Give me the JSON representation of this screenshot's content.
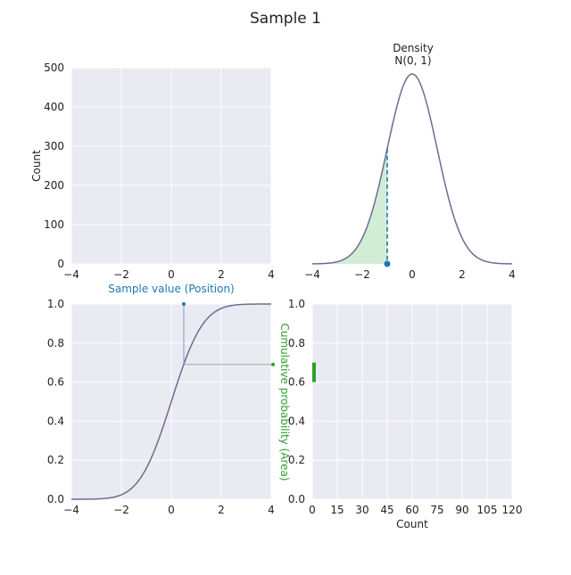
{
  "figure": {
    "title": "Sample 1"
  },
  "colors": {
    "background": "#ffffff",
    "plot_bg": "#eaeaf2",
    "grid": "#ffffff",
    "curve": "#6c6c90",
    "position_blue": "#1f77b4",
    "area_green": "#2ca02c",
    "area_fill": "#bfe6c4"
  },
  "chart_data": [
    {
      "id": "histogram-position",
      "type": "bar",
      "title": "",
      "xlabel": "Sample value (Position)",
      "ylabel": "Count",
      "xlim": [
        -4,
        4
      ],
      "ylim": [
        0,
        500
      ],
      "xticks": [
        "−4",
        "−2",
        "0",
        "2",
        "4"
      ],
      "yticks": [
        "0",
        "100",
        "200",
        "300",
        "400",
        "500"
      ],
      "values": [],
      "grid": true
    },
    {
      "id": "density",
      "type": "line",
      "title": "Density\nN(0, 1)",
      "title_lines": [
        "Density",
        "N(0, 1)"
      ],
      "xlabel": "",
      "ylabel": "",
      "xlim": [
        -4,
        4
      ],
      "xticks": [
        "−4",
        "−2",
        "0",
        "2",
        "4"
      ],
      "function": "standard normal pdf",
      "marker_x": -1.0,
      "shaded_region": [
        -4,
        -1.0
      ],
      "grid": false
    },
    {
      "id": "cdf",
      "type": "line",
      "title": "",
      "xlabel": "",
      "ylabel": "Cumulative probability (Area)",
      "xlim": [
        -4,
        4
      ],
      "ylim": [
        0,
        1
      ],
      "xticks": [
        "−4",
        "−2",
        "0",
        "2",
        "4"
      ],
      "yticks": [
        "0.0",
        "0.2",
        "0.4",
        "0.6",
        "0.8",
        "1.0"
      ],
      "function": "standard normal cdf",
      "guide_x": 0.5,
      "guide_y": 0.69,
      "grid": true
    },
    {
      "id": "histogram-area",
      "type": "bar",
      "orientation": "horizontal",
      "title": "",
      "xlabel": "Count",
      "ylabel": "",
      "xlim": [
        0,
        120
      ],
      "ylim": [
        0,
        1
      ],
      "xticks": [
        "0",
        "15",
        "30",
        "45",
        "60",
        "75",
        "90",
        "105",
        "120"
      ],
      "yticks": [
        "0.0",
        "0.2",
        "0.4",
        "0.6",
        "0.8",
        "1.0"
      ],
      "highlight_range": [
        0.6,
        0.7
      ],
      "grid": true
    }
  ]
}
